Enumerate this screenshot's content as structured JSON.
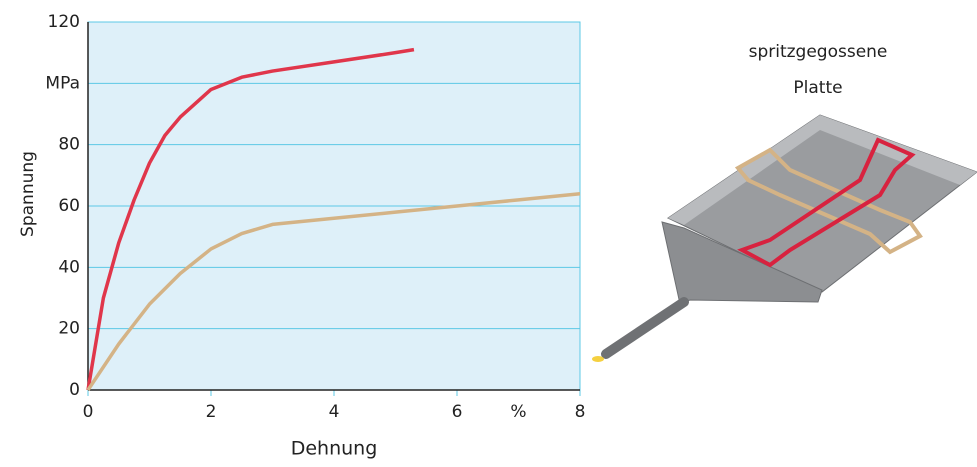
{
  "chart_data": {
    "type": "line",
    "xlabel": "Dehnung",
    "ylabel": "Spannung",
    "xlim": [
      0,
      8
    ],
    "ylim": [
      0,
      120
    ],
    "xticks": [
      0,
      2,
      4,
      6,
      {
        "value": 7,
        "label": "%"
      },
      8
    ],
    "yticks": [
      0,
      20,
      40,
      60,
      80,
      {
        "value": 100,
        "label": "MPa"
      },
      120
    ],
    "grid": true,
    "background": "#def0f9",
    "series": [
      {
        "color": "#e0364b",
        "x": [
          0,
          0.25,
          0.5,
          0.75,
          1.0,
          1.25,
          1.5,
          2,
          2.5,
          3,
          4,
          5,
          5.3
        ],
        "values": [
          0,
          30,
          48,
          62,
          74,
          83,
          89,
          98,
          102,
          104,
          107,
          110,
          111
        ]
      },
      {
        "color": "#d4b386",
        "x": [
          0,
          0.5,
          1,
          1.5,
          2,
          2.5,
          3,
          4,
          5,
          6,
          7,
          8
        ],
        "values": [
          0,
          15,
          28,
          38,
          46,
          51,
          54,
          56,
          58,
          60,
          62,
          64
        ]
      }
    ]
  },
  "illustration": {
    "label": [
      "spritzgegossene",
      "Platte"
    ]
  }
}
